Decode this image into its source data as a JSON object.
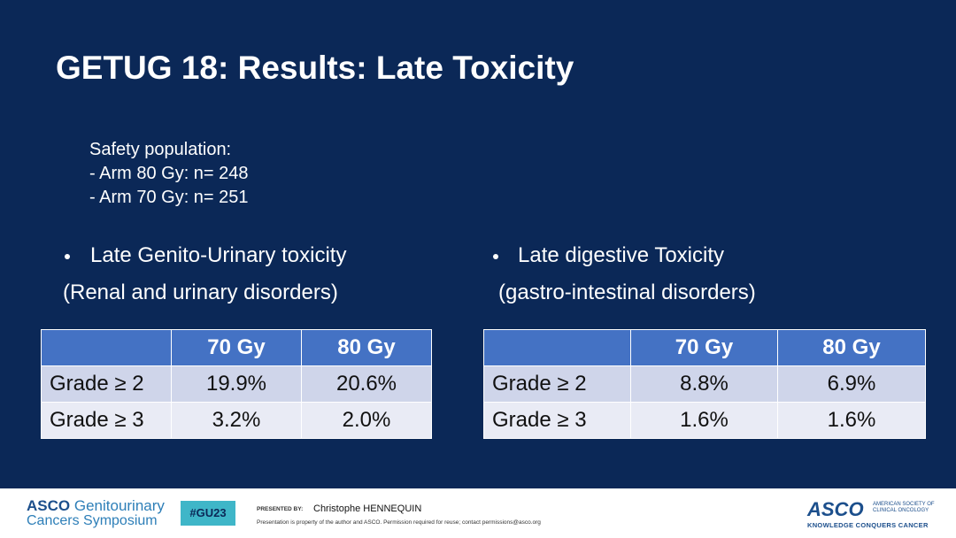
{
  "header": {
    "title": "GETUG 18: Results: Late Toxicity"
  },
  "safety": {
    "heading": "Safety population:",
    "lines": [
      "- Arm 80 Gy: n= 248",
      "- Arm 70 Gy: n= 251"
    ]
  },
  "sections": [
    {
      "bullet": "Late Genito-Urinary toxicity",
      "subtitle": "(Renal and urinary disorders)",
      "table": {
        "columns": [
          "70 Gy",
          "80 Gy"
        ],
        "rows": [
          [
            "Grade ≥ 2",
            "19.9%",
            "20.6%"
          ],
          [
            "Grade ≥ 3",
            "3.2%",
            "2.0%"
          ]
        ]
      }
    },
    {
      "bullet": "Late digestive Toxicity",
      "subtitle": "(gastro-intestinal disorders)",
      "table": {
        "columns": [
          "70 Gy",
          "80 Gy"
        ],
        "rows": [
          [
            "Grade ≥ 2",
            "8.8%",
            "6.9%"
          ],
          [
            "Grade ≥ 3",
            "1.6%",
            "1.6%"
          ]
        ]
      }
    }
  ],
  "footer": {
    "logo_left": {
      "brand": "ASCO",
      "line1": "Genitourinary",
      "line2": "Cancers Symposium"
    },
    "hashtag": "#GU23",
    "presented_by_label": "PRESENTED BY:",
    "presenter": "Christophe HENNEQUIN",
    "notice": "Presentation is property of the author and ASCO. Permission required for reuse; contact permissions@asco.org",
    "logo_right": {
      "name": "ASCO",
      "org": "AMERICAN SOCIETY OF CLINICAL ONCOLOGY",
      "tagline": "KNOWLEDGE CONQUERS CANCER"
    }
  }
}
